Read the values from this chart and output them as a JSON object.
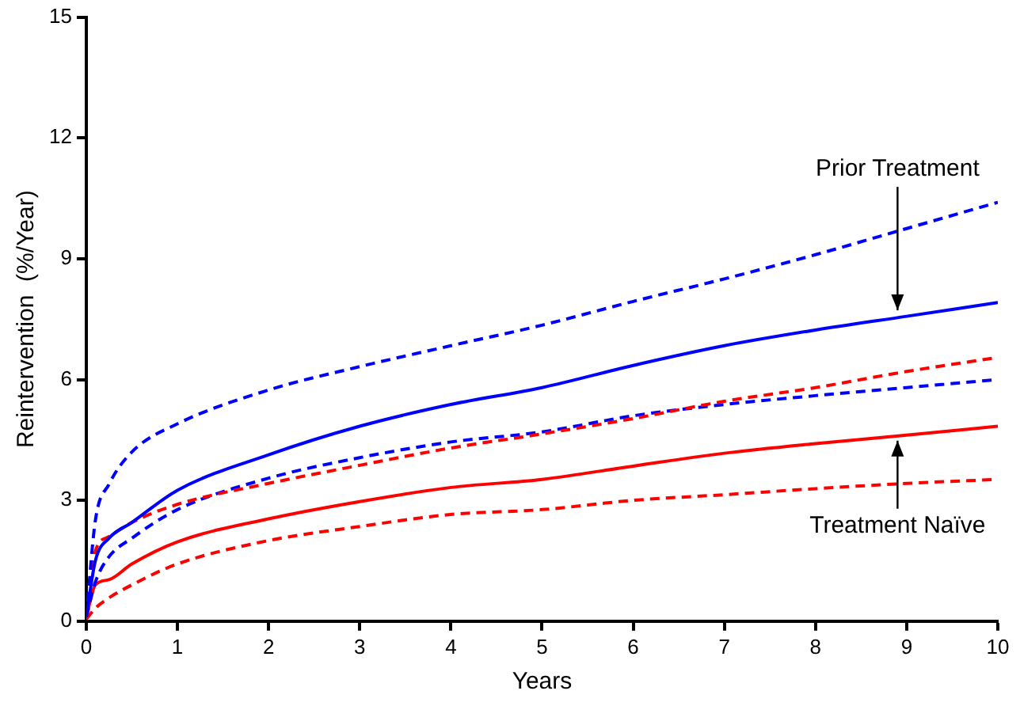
{
  "chart_data": {
    "type": "line",
    "xlabel": "Years",
    "ylabel": "Reintervention  (%/Year)",
    "x": [
      0,
      0.1,
      0.25,
      0.5,
      1,
      2,
      3,
      4,
      5,
      6,
      7,
      8,
      9,
      10
    ],
    "xlim": [
      0,
      10
    ],
    "xticks": [
      0,
      1,
      2,
      3,
      4,
      5,
      6,
      7,
      8,
      9,
      10
    ],
    "ylim": [
      0,
      15
    ],
    "yticks": [
      0,
      3,
      6,
      9,
      12,
      15
    ],
    "marker": "none",
    "legend": false,
    "series": [
      {
        "color": "#0000ff",
        "line_style": "dashed",
        "values": [
          0.1,
          2.5,
          3.4,
          4.2,
          4.9,
          5.74,
          6.32,
          6.84,
          7.35,
          7.94,
          8.5,
          9.1,
          9.75,
          10.4
        ]
      },
      {
        "color": "#0000ff",
        "line_style": "solid",
        "values": [
          0.1,
          1.5,
          2.06,
          2.45,
          3.25,
          4.13,
          4.84,
          5.38,
          5.8,
          6.35,
          6.84,
          7.23,
          7.57,
          7.91
        ]
      },
      {
        "color": "#ff0000",
        "line_style": "dashed",
        "values": [
          0.1,
          1.74,
          2.1,
          2.45,
          2.9,
          3.42,
          3.87,
          4.3,
          4.65,
          5.03,
          5.46,
          5.8,
          6.2,
          6.55
        ]
      },
      {
        "color": "#0000ff",
        "line_style": "dashed",
        "values": [
          0.1,
          0.97,
          1.6,
          2.06,
          2.77,
          3.55,
          4.06,
          4.45,
          4.7,
          5.1,
          5.38,
          5.6,
          5.8,
          6.0
        ]
      },
      {
        "color": "#ff0000",
        "line_style": "solid",
        "values": [
          0.1,
          0.9,
          1.03,
          1.42,
          1.97,
          2.54,
          2.97,
          3.32,
          3.52,
          3.85,
          4.17,
          4.41,
          4.62,
          4.84
        ]
      },
      {
        "color": "#ff0000",
        "line_style": "dashed",
        "values": [
          0.05,
          0.32,
          0.58,
          0.9,
          1.42,
          2.0,
          2.35,
          2.65,
          2.77,
          3.0,
          3.14,
          3.29,
          3.42,
          3.52
        ]
      }
    ],
    "annotations": [
      {
        "text": "Prior Treatment",
        "x": 8.9,
        "y": 7.6
      },
      {
        "text": "Treatment Naïve",
        "x": 8.9,
        "y": 4.6
      }
    ]
  }
}
